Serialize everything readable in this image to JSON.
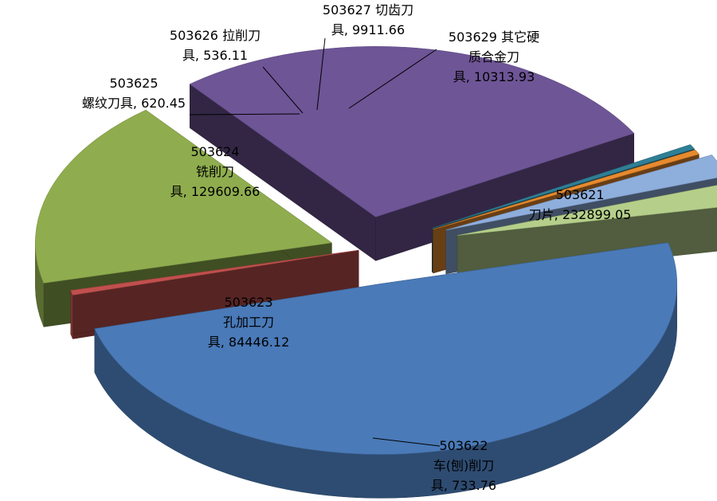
{
  "chart_data": {
    "type": "pie",
    "style": "3d-exploded",
    "legend": "none",
    "slices": [
      {
        "code": "503621",
        "name": "刀片",
        "value": 232899.05,
        "color": "#4a7ab8",
        "label_lines": [
          "503621",
          "刀片, 232899.05"
        ]
      },
      {
        "code": "503622",
        "name": "车(刨)削刀具",
        "value": 733.76,
        "color": "#c0504d",
        "label_lines": [
          "503622",
          "车(刨)削刀",
          "具, 733.76"
        ]
      },
      {
        "code": "503623",
        "name": "孔加工刀具",
        "value": 84446.12,
        "color": "#8fad4e",
        "label_lines": [
          "503623",
          "孔加工刀",
          "具, 84446.12"
        ]
      },
      {
        "code": "503624",
        "name": "铣削刀具",
        "value": 129609.66,
        "color": "#6e5596",
        "label_lines": [
          "503624",
          "铣削刀",
          "具, 129609.66"
        ]
      },
      {
        "code": "503625",
        "name": "螺纹刀具",
        "value": 620.45,
        "color": "#2f7f95",
        "label_lines": [
          "503625",
          "螺纹刀具, 620.45"
        ]
      },
      {
        "code": "503626",
        "name": "拉削刀具",
        "value": 536.11,
        "color": "#e78a2e",
        "label_lines": [
          "503626  拉削刀",
          "具, 536.11"
        ]
      },
      {
        "code": "503627",
        "name": "切齿刀具",
        "value": 9911.66,
        "color": "#8eaedc",
        "label_lines": [
          "503627  切齿刀",
          "具, 9911.66"
        ]
      },
      {
        "code": "503629",
        "name": "其它硬质合金刀具",
        "value": 10313.93,
        "color": "#b5cf8a",
        "label_lines": [
          "503629    其它硬",
          "质合金刀",
          "具, 10313.93"
        ]
      }
    ]
  }
}
